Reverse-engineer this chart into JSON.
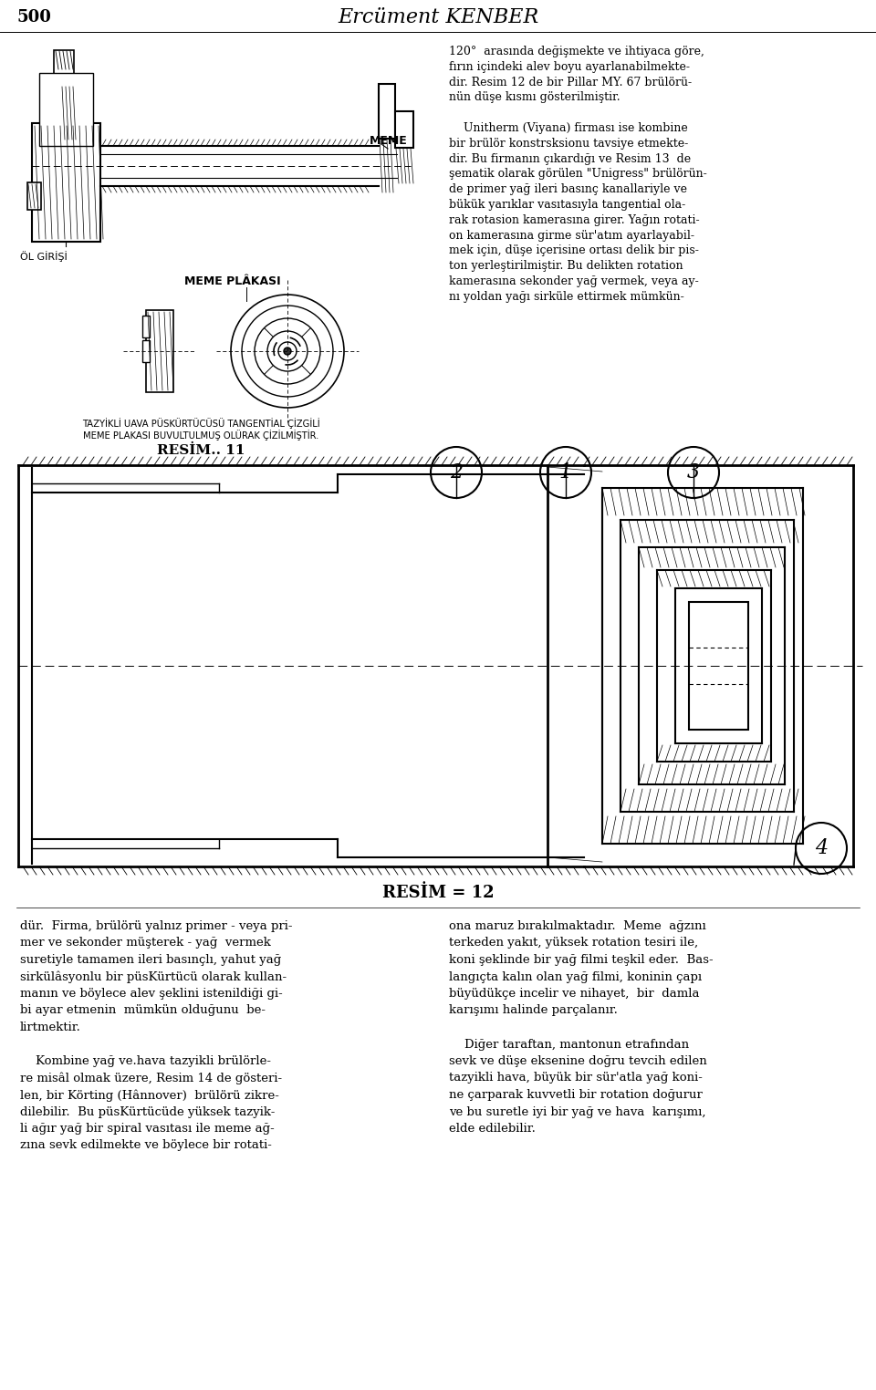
{
  "page_number": "500",
  "header_title": "Ercüment KENBER",
  "background_color": "#ffffff",
  "text_color": "#000000",
  "top_right_text_col1": [
    "120°  arasında değişmekte ve ihtiyaca göre,",
    "fırın içindeki alev boyu ayarlanabilmekte-",
    "dir. Resim 12 de bir Pillar MY. 67 brülörü-",
    "nün düşe kısmı gösterilmiştir.",
    "",
    "    Unitherm (Viyana) firması ise kombine",
    "bir brülör konstrsksionu tavsiye etmekte-",
    "dir. Bu firmanın çıkardığı ve Resim 13  de",
    "şematik olarak görülen \"Unigress\" brülörün-",
    "de primer yağ ileri basınç kanallariyle ve",
    "bükük yarıklar vasıtasıyla tangential ola-",
    "rak rotasion kamerasına girer. Yağın rotati-",
    "on kamerasına girme sür'atım ayarlayabil-",
    "mek için, düşe içerisine ortası delik bir pis-",
    "ton yerleştirilmiştir. Bu delikten rotation",
    "kamerasına sekonder yağ vermek, veya ay-",
    "nı yoldan yağı sirküle ettirmek mümkün-"
  ],
  "caption_line1": "TAZYİKLİ UAVA PÜSKÜRTÜCÜSÜ TANGENTİAL ÇİZGİLİ",
  "caption_line2": "MEME PLAKASI BUVULTULMUŞ OLÜRAK ÇİZİLMİŞTİR.",
  "resim11_label": "RESİM.. 11",
  "resim12_label": "RESİM = 12",
  "label_meme": "MEME",
  "label_meme_plakasi": "MEME PLÂKASI",
  "label_ol_girisi": "ÖL GİRİŞİ",
  "bottom_left_text": [
    "dür.  Firma, brülörü yalnız primer - veya pri-",
    "mer ve sekonder müşterek - yağ  vermek",
    "suretiyle tamamen ileri basınçlı, yahut yağ",
    "sirkülâsyonlu bir püsKürtücü olarak kullan-",
    "manın ve böylece alev şeklini istenildiği gi-",
    "bi ayar etmenin  mümkün olduğunu  be-",
    "lirtmektir.",
    "",
    "    Kombine yağ ve.hava tazyikli brülörle-",
    "re misâl olmak üzere, Resim 14 de gösteri-",
    "len, bir Körting (Hânnover)  brülörü zikre-",
    "dilebilir.  Bu püsKürtücüde yüksek tazyik-",
    "li ağır yağ bir spiral vasıtası ile meme ağ-",
    "zına sevk edilmekte ve böylece bir rotati-"
  ],
  "bottom_right_text": [
    "ona maruz bırakılmaktadır.  Meme  ağzını",
    "terkeden yakıt, yüksek rotation tesiri ile,",
    "koni şeklinde bir yağ filmi teşkil eder.  Bas-",
    "langıçta kalın olan yağ filmi, koninin çapı",
    "büyüdükçe incelir ve nihayet,  bir  damla",
    "karışımı halinde parçalanır.",
    "",
    "    Diğer taraftan, mantonun etrafından",
    "sevk ve düşe eksenine doğru tevcih edilen",
    "tazyikli hava, büyük bir sür'atla yağ koni-",
    "ne çarparak kuvvetli bir rotation doğurur",
    "ve bu suretle iyi bir yağ ve hava  karışımı,",
    "elde edilebilir."
  ]
}
